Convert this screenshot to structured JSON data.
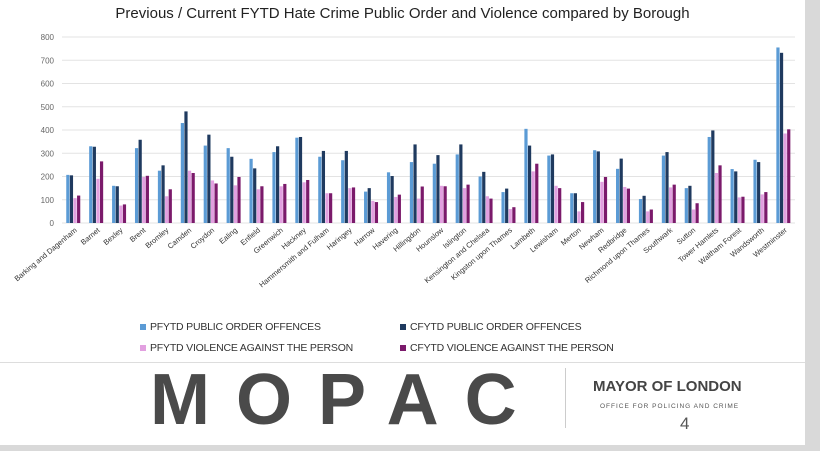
{
  "chart_data": {
    "type": "bar",
    "title": "Previous / Current FYTD Hate Crime Public Order and Violence compared by Borough",
    "xlabel": "",
    "ylabel": "",
    "ylim": [
      0,
      800
    ],
    "yticks": [
      0,
      100,
      200,
      300,
      400,
      500,
      600,
      700,
      800
    ],
    "grid": true,
    "legend_position": "bottom",
    "categories": [
      "Barking and Dagenham",
      "Barnet",
      "Bexley",
      "Brent",
      "Bromley",
      "Camden",
      "Croydon",
      "Ealing",
      "Enfield",
      "Greenwich",
      "Hackney",
      "Hammersmith and Fulham",
      "Haringey",
      "Harrow",
      "Havering",
      "Hillingdon",
      "Hounslow",
      "Islington",
      "Kensington and Chelsea",
      "Kingston upon Thames",
      "Lambeth",
      "Lewisham",
      "Merton",
      "Newham",
      "Redbridge",
      "Richmond upon Thames",
      "Southwark",
      "Sutton",
      "Tower Hamlets",
      "Waltham Forest",
      "Wandsworth",
      "Westminster"
    ],
    "series": [
      {
        "name": "PFYTD PUBLIC ORDER OFFENCES",
        "color": "#5b9bd5",
        "values": [
          207,
          330,
          160,
          322,
          225,
          430,
          333,
          322,
          276,
          305,
          367,
          285,
          270,
          135,
          218,
          262,
          255,
          295,
          200,
          133,
          405,
          290,
          128,
          313,
          233,
          103,
          290,
          150,
          370,
          232,
          272,
          755
        ]
      },
      {
        "name": "CFYTD PUBLIC ORDER OFFENCES",
        "color": "#1f3a5f",
        "values": [
          205,
          328,
          158,
          358,
          248,
          480,
          380,
          285,
          235,
          330,
          370,
          310,
          310,
          150,
          202,
          338,
          292,
          338,
          220,
          148,
          333,
          295,
          128,
          308,
          277,
          117,
          305,
          160,
          398,
          222,
          262,
          732
        ]
      },
      {
        "name": "PFYTD  VIOLENCE AGAINST THE PERSON",
        "color": "#e2a0e0",
        "values": [
          107,
          190,
          75,
          198,
          115,
          225,
          183,
          162,
          145,
          158,
          175,
          128,
          150,
          95,
          112,
          105,
          160,
          150,
          115,
          60,
          222,
          160,
          50,
          177,
          155,
          50,
          153,
          58,
          215,
          110,
          123,
          385
        ]
      },
      {
        "name": "CFYTD VIOLENCE AGAINST THE PERSON",
        "color": "#7b1a6b",
        "values": [
          118,
          265,
          80,
          203,
          145,
          215,
          170,
          198,
          158,
          168,
          185,
          128,
          153,
          90,
          122,
          157,
          158,
          165,
          105,
          68,
          255,
          150,
          90,
          198,
          148,
          58,
          165,
          85,
          248,
          113,
          133,
          403
        ]
      }
    ]
  },
  "footer": {
    "logo": "MOPAC",
    "mayor": "MAYOR OF LONDON",
    "office": "OFFICE FOR POLICING AND CRIME",
    "page_number": "4"
  }
}
